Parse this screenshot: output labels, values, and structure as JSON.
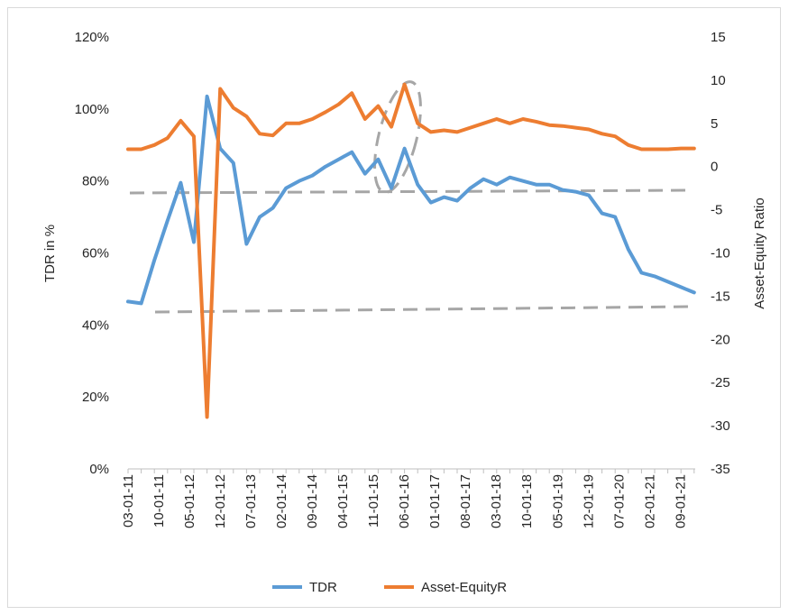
{
  "chart_data": {
    "type": "line",
    "xlabel": "",
    "ylabel_left": "TDR in %",
    "ylabel_right": "Asset-Equity Ratio",
    "x_tick_labels": [
      "03-01-11",
      "10-01-11",
      "05-01-12",
      "12-01-12",
      "07-01-13",
      "02-01-14",
      "09-01-14",
      "04-01-15",
      "11-01-15",
      "06-01-16",
      "01-01-17",
      "08-01-17",
      "03-01-18",
      "10-01-18",
      "05-01-19",
      "12-01-19",
      "07-01-20",
      "02-01-21",
      "09-01-21"
    ],
    "x": [
      "03-01-11",
      "06-01-11",
      "09-01-11",
      "12-01-11",
      "03-01-12",
      "06-01-12",
      "09-01-12",
      "12-01-12",
      "03-01-13",
      "06-01-13",
      "09-01-13",
      "12-01-13",
      "03-01-14",
      "06-01-14",
      "09-01-14",
      "12-01-14",
      "03-01-15",
      "06-01-15",
      "09-01-15",
      "12-01-15",
      "03-01-16",
      "06-01-16",
      "09-01-16",
      "12-01-16",
      "03-01-17",
      "06-01-17",
      "09-01-17",
      "12-01-17",
      "03-01-18",
      "06-01-18",
      "09-01-18",
      "12-01-18",
      "03-01-19",
      "06-01-19",
      "09-01-19",
      "12-01-19",
      "03-01-20",
      "06-01-20",
      "09-01-20",
      "12-01-20",
      "03-01-21",
      "06-01-21",
      "09-01-21",
      "12-01-21"
    ],
    "left_ylim": [
      0,
      120
    ],
    "left_ytick_labels": [
      "0%",
      "20%",
      "40%",
      "60%",
      "80%",
      "100%",
      "120%"
    ],
    "right_ylim": [
      -35,
      15
    ],
    "right_ytick_labels": [
      "-35",
      "-30",
      "-25",
      "-20",
      "-15",
      "-10",
      "-5",
      "0",
      "5",
      "10",
      "15"
    ],
    "series": [
      {
        "name": "TDR",
        "axis": "left",
        "color": "#5b9bd5",
        "values": [
          46.5,
          46,
          58,
          69,
          79.5,
          63,
          103.5,
          89,
          85,
          62.5,
          70,
          72.5,
          78,
          80,
          81.5,
          84,
          86,
          88,
          82,
          86,
          78,
          89,
          79,
          74,
          75.5,
          74.5,
          78,
          80.5,
          79,
          81,
          80,
          79,
          79,
          77.5,
          77,
          76,
          71,
          70,
          61,
          54.5,
          53.5,
          52,
          50.5,
          49
        ]
      },
      {
        "name": "Asset-EquityR",
        "axis": "right",
        "color": "#ed7d31",
        "values": [
          2,
          2,
          2.5,
          3.3,
          5.3,
          3.5,
          -29,
          9,
          6.8,
          5.8,
          3.8,
          3.6,
          5,
          5,
          5.5,
          6.3,
          7.2,
          8.5,
          5.5,
          7,
          4.6,
          9.5,
          5,
          4,
          4.2,
          4,
          4.5,
          5,
          5.5,
          5,
          5.5,
          5.2,
          4.8,
          4.7,
          4.5,
          4.3,
          3.8,
          3.5,
          2.5,
          2,
          2,
          2,
          2.1,
          2.1
        ]
      }
    ],
    "legend": {
      "position": "bottom",
      "items": [
        "TDR",
        "Asset-EquityR"
      ]
    },
    "grid": false
  }
}
